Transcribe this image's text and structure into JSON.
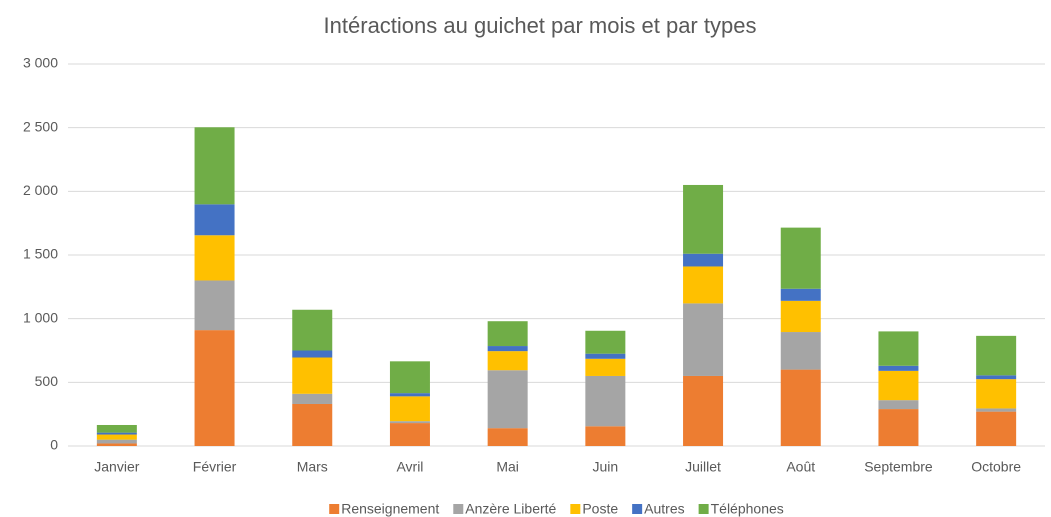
{
  "chart_data": {
    "type": "stacked_bar",
    "title": "Intéractions au guichet par mois et par types",
    "categories": [
      "Janvier",
      "Février",
      "Mars",
      "Avril",
      "Mai",
      "Juin",
      "Juillet",
      "Août",
      "Septembre",
      "Octobre"
    ],
    "series": [
      {
        "name": "Renseignement",
        "color": "#ed7d31",
        "values": [
          20,
          910,
          330,
          180,
          140,
          155,
          550,
          600,
          290,
          270
        ]
      },
      {
        "name": "Anzère Liberté",
        "color": "#a5a5a5",
        "values": [
          30,
          390,
          80,
          15,
          455,
          395,
          570,
          295,
          70,
          25
        ]
      },
      {
        "name": "Poste",
        "color": "#ffc000",
        "values": [
          40,
          355,
          285,
          195,
          150,
          135,
          290,
          245,
          230,
          230
        ]
      },
      {
        "name": "Autres",
        "color": "#4472c4",
        "values": [
          15,
          243,
          55,
          25,
          40,
          40,
          100,
          95,
          40,
          30
        ]
      },
      {
        "name": "Téléphones",
        "color": "#70ad47",
        "values": [
          60,
          605,
          320,
          250,
          195,
          180,
          540,
          480,
          270,
          310
        ]
      }
    ],
    "ylim": [
      0,
      3000
    ],
    "yticks": [
      0,
      500,
      {
        "value": 1000,
        "label": "1 000"
      },
      {
        "value": 1500,
        "label": "1 500"
      },
      {
        "value": 2000,
        "label": "2 000"
      },
      {
        "value": 2500,
        "label": "2 500"
      },
      {
        "value": 3000,
        "label": "3 000"
      }
    ],
    "grid": true,
    "legend": "bottom"
  }
}
